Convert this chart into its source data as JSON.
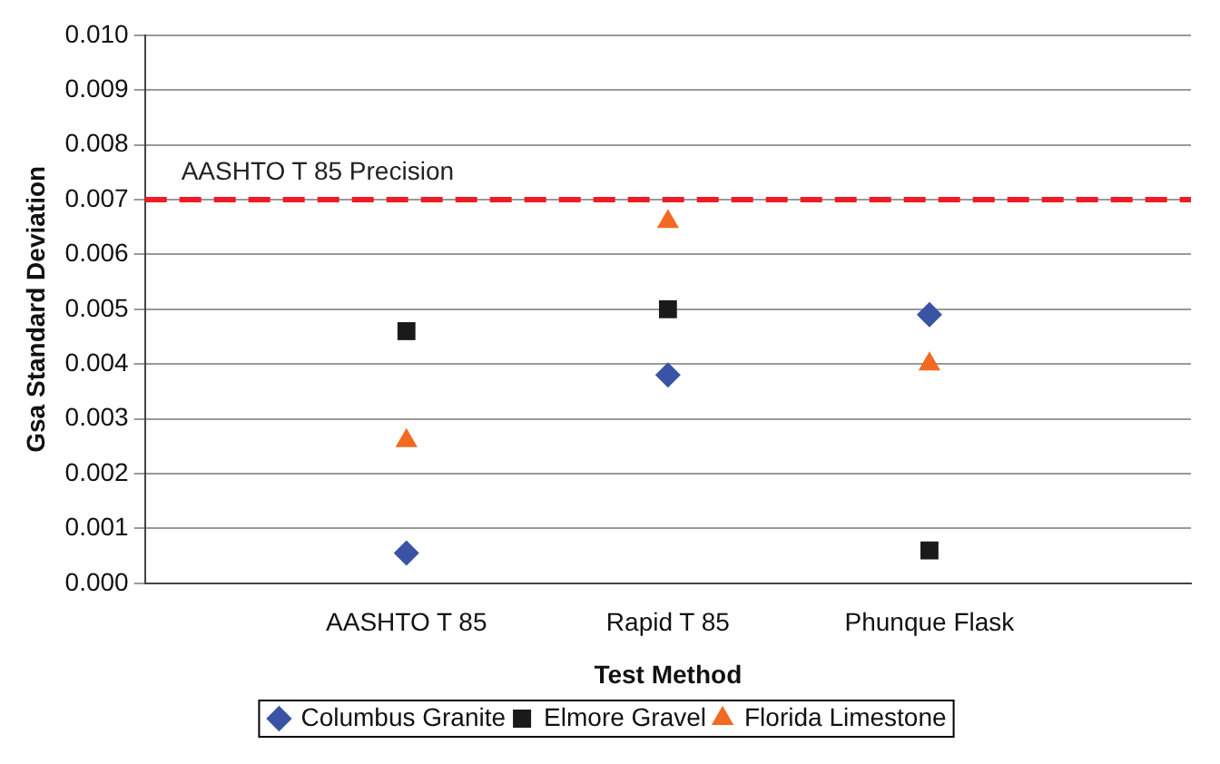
{
  "chart_data": {
    "type": "scatter",
    "xlabel": "Test Method",
    "ylabel": "Gsa Standard Deviation",
    "categories": [
      null,
      "AASHTO T 85",
      "Rapid T 85",
      "Phunque Flask",
      null
    ],
    "series": [
      {
        "name": "Columbus Granite",
        "color": "#3a53a4",
        "marker": "diamond",
        "values": [
          null,
          0.00055,
          0.0038,
          0.0049,
          null
        ]
      },
      {
        "name": "Elmore Gravel",
        "color": "#1a1a1a",
        "marker": "square",
        "values": [
          null,
          0.0046,
          0.005,
          0.0006,
          null
        ]
      },
      {
        "name": "Florida Limestone",
        "color": "#f26a21",
        "marker": "triangle",
        "values": [
          null,
          0.0026,
          0.0066,
          0.004,
          null
        ]
      }
    ],
    "ylim": [
      0,
      0.01
    ],
    "yticks": [
      {
        "value": 0,
        "label": "0.000"
      },
      0.001,
      0.002,
      0.003,
      0.004,
      0.005,
      0.006,
      0.007,
      0.008,
      0.009,
      {
        "value": 0.01,
        "label": "0.010"
      }
    ],
    "grid": "y",
    "legend": "bottom",
    "ref_lines": [
      {
        "axis": "y",
        "value": 0.007,
        "label": "AASHTO T 85 Precision",
        "color": "#ee1c25",
        "line_style": "dashed"
      }
    ]
  }
}
